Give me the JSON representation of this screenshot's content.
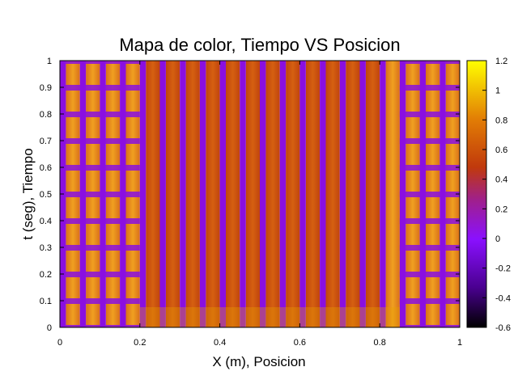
{
  "chart_data": {
    "type": "heatmap",
    "title": "Mapa de color, Tiempo VS Posicion",
    "xlabel": "X (m), Posicion",
    "ylabel": "t (seg), Tiempo",
    "xlim": [
      0,
      1
    ],
    "ylim": [
      0,
      1
    ],
    "x_ticks": [
      "0",
      "0.2",
      "0.4",
      "0.6",
      "0.8",
      "1"
    ],
    "y_ticks": [
      "0",
      "0.1",
      "0.2",
      "0.3",
      "0.4",
      "0.5",
      "0.6",
      "0.7",
      "0.8",
      "0.9",
      "1"
    ],
    "colorbar": {
      "range": [
        -0.6,
        1.2
      ],
      "ticks": [
        "-0.6",
        "-0.4",
        "-0.2",
        "0",
        "0.2",
        "0.4",
        "0.6",
        "0.8",
        "1",
        "1.2"
      ],
      "palette": [
        "#000000",
        "#8000ff",
        "#c0392b",
        "#e07000",
        "#ffff00"
      ]
    },
    "grid": false,
    "legend": "none"
  }
}
